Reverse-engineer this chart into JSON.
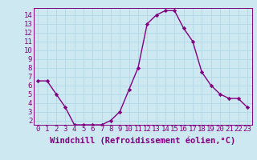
{
  "hours": [
    0,
    1,
    2,
    3,
    4,
    5,
    6,
    7,
    8,
    9,
    10,
    11,
    12,
    13,
    14,
    15,
    16,
    17,
    18,
    19,
    20,
    21,
    22,
    23
  ],
  "values": [
    6.5,
    6.5,
    5.0,
    3.5,
    1.5,
    1.5,
    1.5,
    1.5,
    2.0,
    3.0,
    5.5,
    8.0,
    13.0,
    14.0,
    14.5,
    14.5,
    12.5,
    11.0,
    7.5,
    6.0,
    5.0,
    4.5,
    4.5,
    3.5
  ],
  "line_color": "#800080",
  "marker": "D",
  "marker_size": 2.2,
  "bg_color": "#cde8f0",
  "grid_color": "#b0d8e8",
  "xlabel": "Windchill (Refroidissement éolien,°C)",
  "ylim": [
    1.5,
    14.8
  ],
  "xlim": [
    -0.5,
    23.5
  ],
  "yticks": [
    2,
    3,
    4,
    5,
    6,
    7,
    8,
    9,
    10,
    11,
    12,
    13,
    14
  ],
  "xticks": [
    0,
    1,
    2,
    3,
    4,
    5,
    6,
    7,
    8,
    9,
    10,
    11,
    12,
    13,
    14,
    15,
    16,
    17,
    18,
    19,
    20,
    21,
    22,
    23
  ],
  "tick_label_fontsize": 6.5,
  "xlabel_fontsize": 7.5
}
